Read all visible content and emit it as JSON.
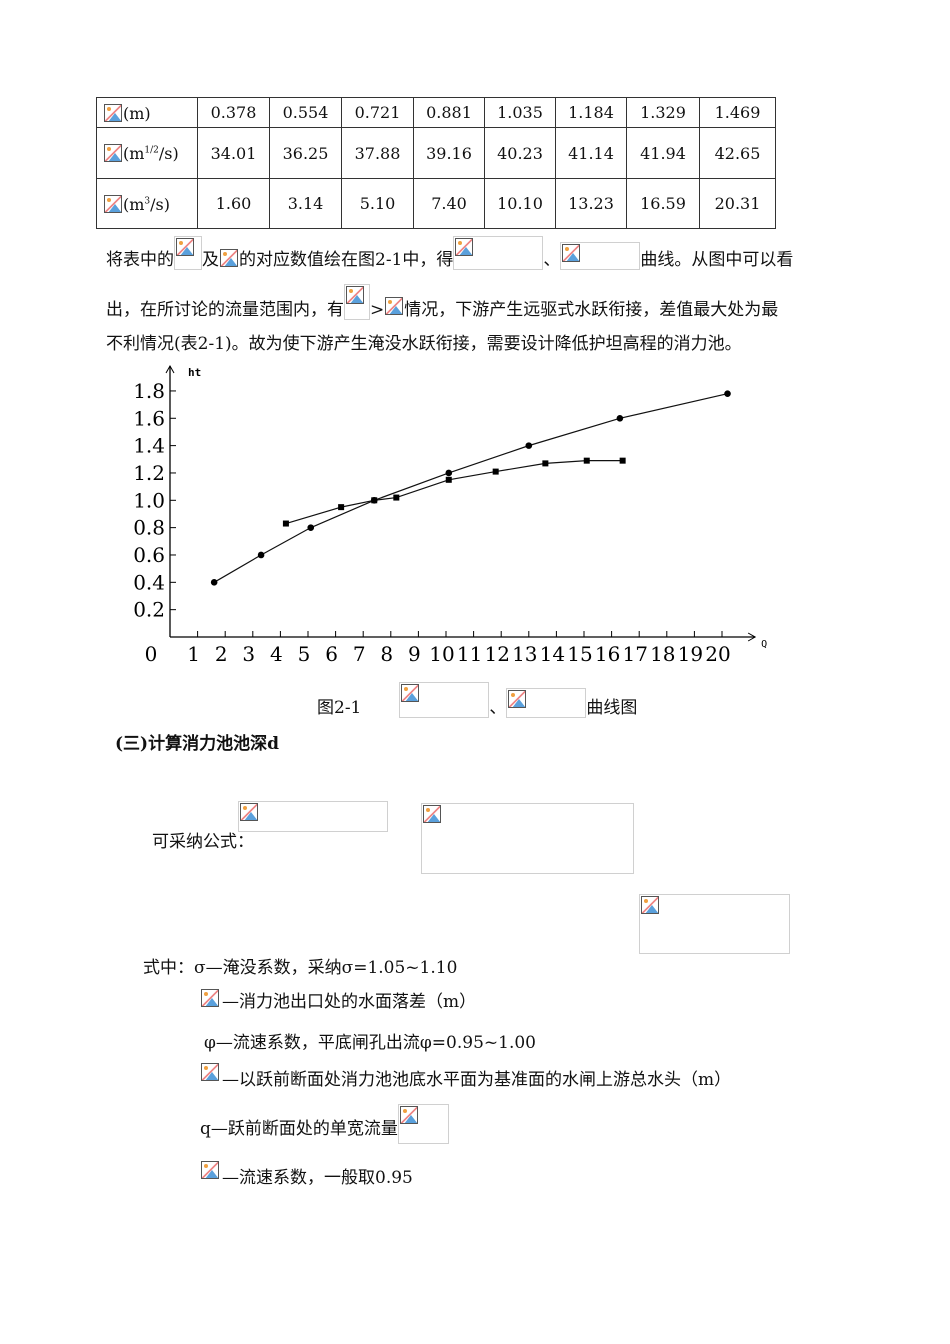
{
  "table": {
    "rows": [
      {
        "unit": "(m)",
        "values": [
          "0.378",
          "0.554",
          "0.721",
          "0.881",
          "1.035",
          "1.184",
          "1.329",
          "1.469"
        ]
      },
      {
        "unit": "(m1/2/s)",
        "values": [
          "34.01",
          "36.25",
          "37.88",
          "39.16",
          "40.23",
          "41.14",
          "41.94",
          "42.65"
        ]
      },
      {
        "unit": "(m3/s)",
        "values": [
          "1.60",
          "3.14",
          "5.10",
          "7.40",
          "10.10",
          "13.23",
          "16.59",
          "20.31"
        ]
      }
    ]
  },
  "para": {
    "l1a": "将表中的",
    "l1b": "及",
    "l1c": "的对应数值绘在图2-1中，得",
    "l1d": "、",
    "l1e": "曲线。从图中可以看",
    "l2a": "出，在所讨论的流量范围内，有",
    "l2b": ">",
    "l2c": "情况，下游产生远驱式水跃衔接，差值最大处为最",
    "l3": "不利情况(表2-1)。故为使下游产生淹没水跃衔接，需要设计降低护坦高程的消力池。"
  },
  "chart_data": {
    "type": "line",
    "xlabel": "Q",
    "ylabel": "ht",
    "xlim": [
      0,
      20.5
    ],
    "ylim": [
      0,
      1.9
    ],
    "xticks": [
      "0",
      "1",
      "2",
      "3",
      "4",
      "5",
      "6",
      "7",
      "8",
      "9",
      "10",
      "11",
      "12",
      "13",
      "14",
      "15",
      "16",
      "17",
      "18",
      "19",
      "20"
    ],
    "yticks": [
      "0.2",
      "0.4",
      "0.6",
      "0.8",
      "1.0",
      "1.2",
      "1.4",
      "1.6",
      "1.8"
    ],
    "series": [
      {
        "marker": "circle",
        "x": [
          1.6,
          3.3,
          5.1,
          7.4,
          10.1,
          13.0,
          16.3,
          20.2
        ],
        "y": [
          0.4,
          0.6,
          0.8,
          1.0,
          1.2,
          1.4,
          1.6,
          1.78
        ]
      },
      {
        "marker": "square",
        "x": [
          4.2,
          6.2,
          7.4,
          8.2,
          10.1,
          11.8,
          13.6,
          15.1,
          16.4
        ],
        "y": [
          0.83,
          0.95,
          1.0,
          1.02,
          1.15,
          1.21,
          1.27,
          1.29,
          1.29
        ]
      }
    ]
  },
  "caption": {
    "label": "图2-1",
    "sep": "、",
    "suffix": "曲线图"
  },
  "section": {
    "title": "(三)计算消力池池深d",
    "formula_label": "可采纳公式："
  },
  "defs": {
    "sigma": "式中：σ—淹没系数，采纳σ=1.05~1.10",
    "dz": "—消力池出口处的水面落差（m）",
    "phi": "φ—流速系数，平底闸孔出流φ=0.95~1.00",
    "h0": "—以跃前断面处消力池池底水平面为基准面的水闸上游总水头（m）",
    "q": "q—跃前断面处的单宽流量",
    "coef": "—流速系数，一般取0.95"
  }
}
